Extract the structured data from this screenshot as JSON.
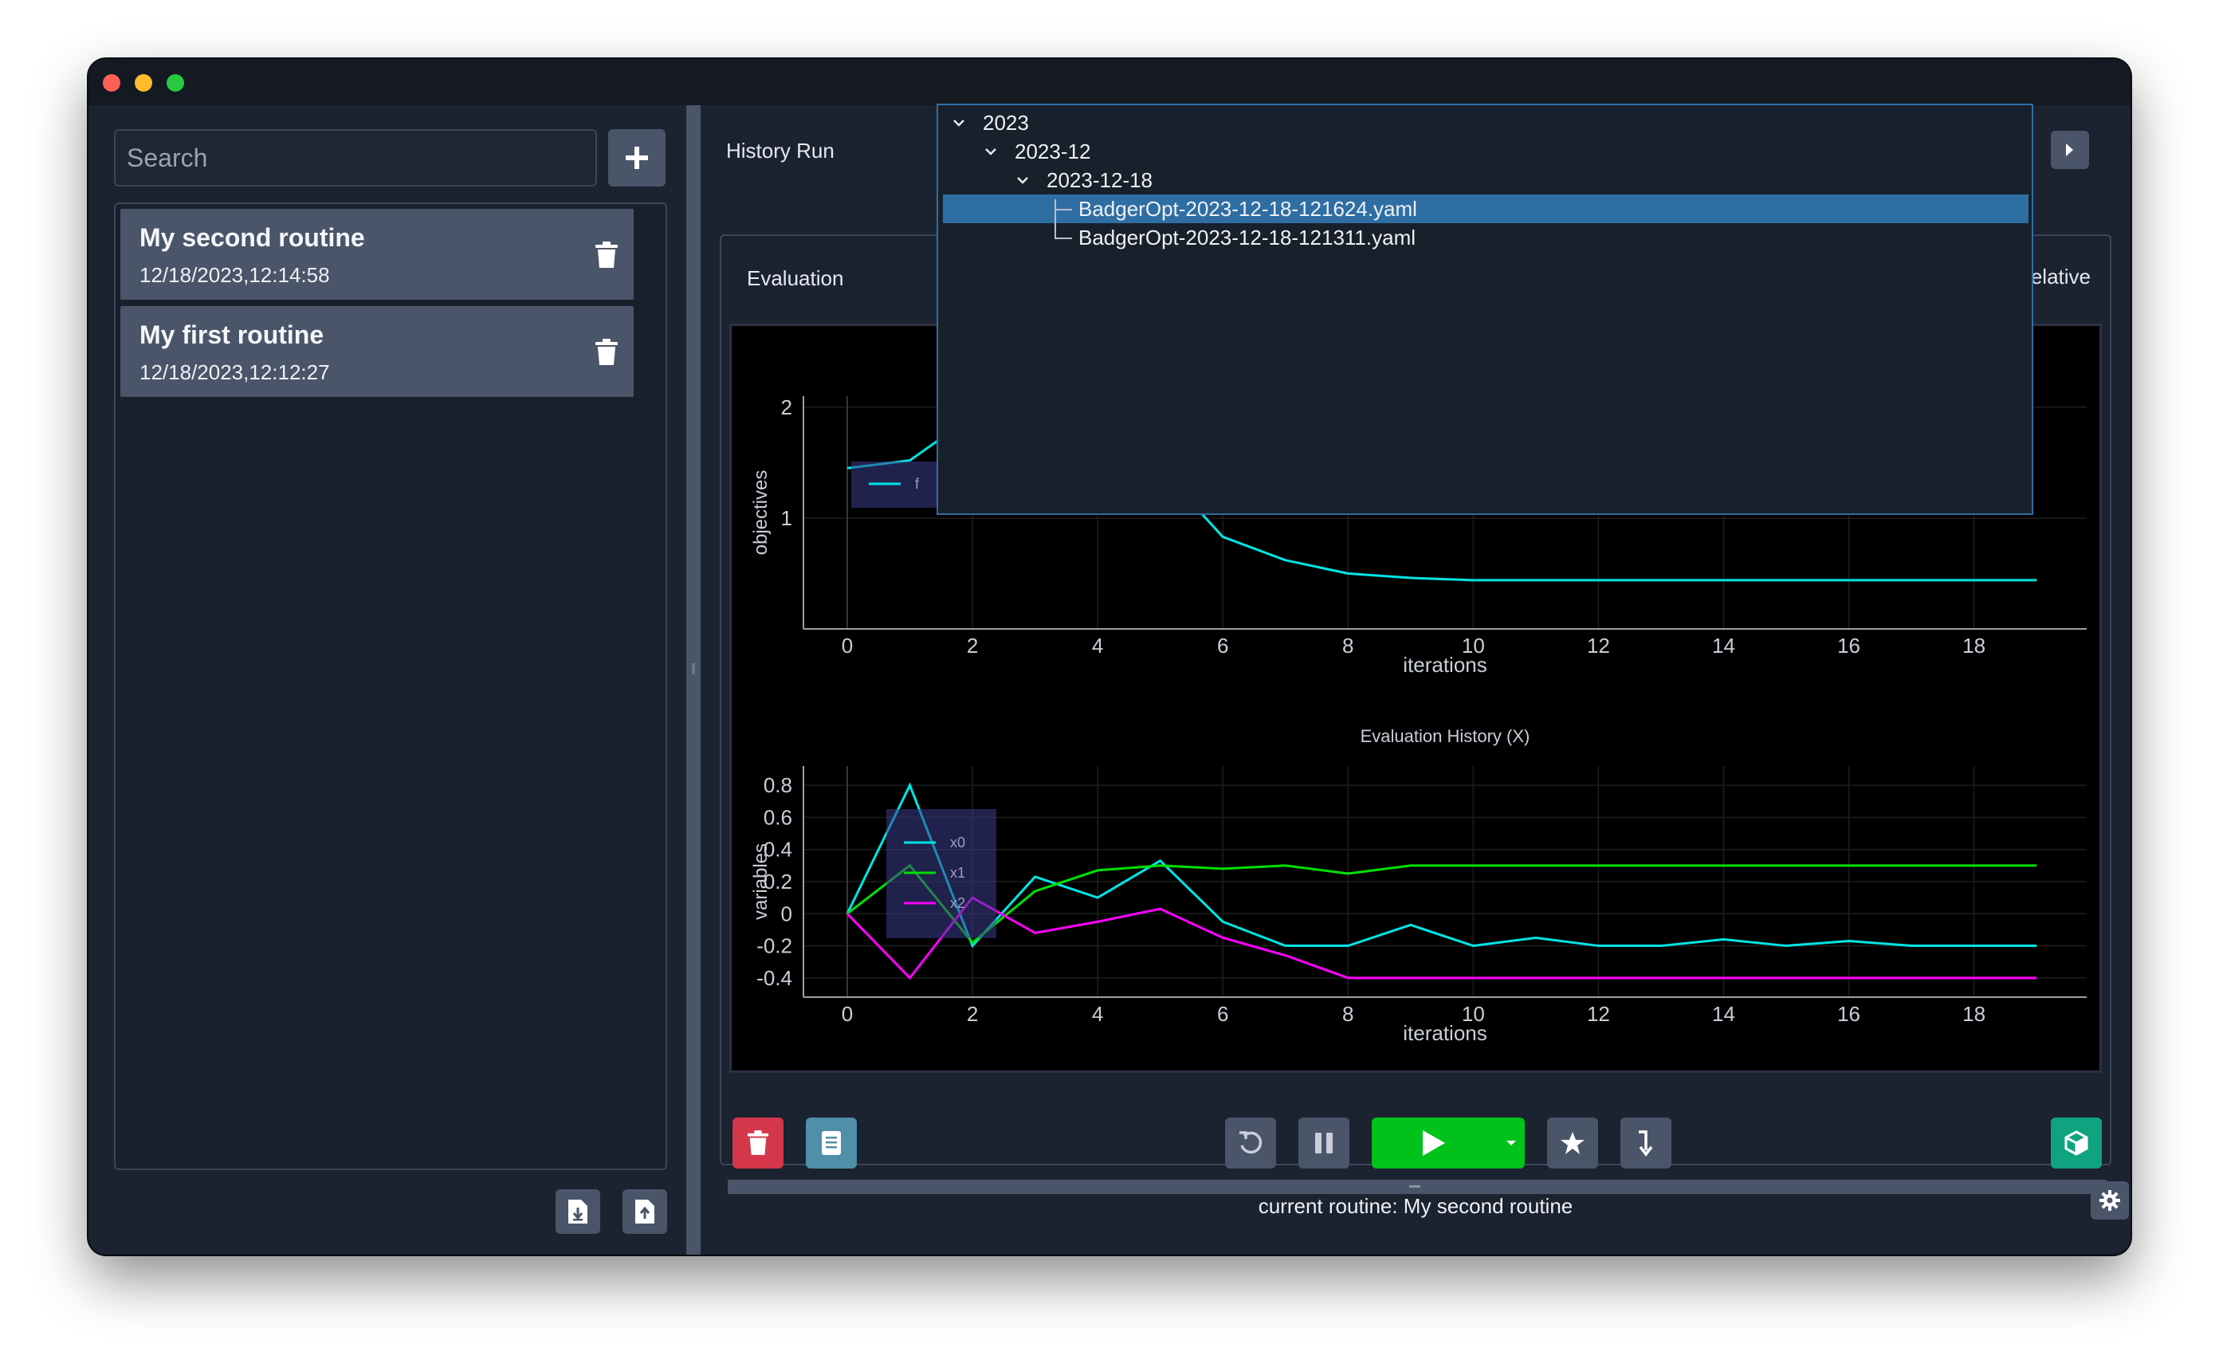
{
  "window": {
    "traffic_lights": [
      "close",
      "minimize",
      "maximize"
    ]
  },
  "sidebar": {
    "search_placeholder": "Search",
    "add_icon": "plus-icon",
    "routines": [
      {
        "name": "My second routine",
        "date": "12/18/2023,12:14:58"
      },
      {
        "name": "My first routine",
        "date": "12/18/2023,12:12:27"
      }
    ],
    "delete_icon": "trash-icon",
    "import_icon": "import-icon",
    "export_icon": "export-icon"
  },
  "header": {
    "history_label": "History Run",
    "prev_icon": "triangle-left-icon",
    "next_icon": "triangle-right-icon"
  },
  "history_tree": {
    "year": "2023",
    "month": "2023-12",
    "day": "2023-12-18",
    "files": [
      "BadgerOpt-2023-12-18-121624.yaml",
      "BadgerOpt-2023-12-18-121311.yaml"
    ],
    "selected_index": 0
  },
  "panel": {
    "evaluation_label": "Evaluation",
    "relative_label": "Relative",
    "relative_checked": true
  },
  "chart_data": [
    {
      "type": "line",
      "title": "",
      "xlabel": "iterations",
      "ylabel": "objectives",
      "x_ticks": [
        0,
        2,
        4,
        6,
        8,
        10,
        12,
        14,
        16,
        18
      ],
      "y_ticks": [
        1,
        2
      ],
      "xlim": [
        -0.7,
        19.8
      ],
      "ylim": [
        0.0,
        2.1
      ],
      "grid": true,
      "legend": "top-left",
      "series": [
        {
          "name": "f",
          "color": "#00e5e5",
          "x": [
            0,
            1,
            2,
            3,
            4,
            5,
            6,
            7,
            8,
            9,
            10,
            11,
            12,
            13,
            14,
            15,
            16,
            17,
            18,
            19
          ],
          "y": [
            1.45,
            1.52,
            1.92,
            1.35,
            1.2,
            1.45,
            0.83,
            0.62,
            0.5,
            0.46,
            0.44,
            0.44,
            0.44,
            0.44,
            0.44,
            0.44,
            0.44,
            0.44,
            0.44,
            0.44
          ]
        }
      ]
    },
    {
      "type": "line",
      "title": "Evaluation History (X)",
      "xlabel": "iterations",
      "ylabel": "variables",
      "x_ticks": [
        0,
        2,
        4,
        6,
        8,
        10,
        12,
        14,
        16,
        18
      ],
      "y_ticks": [
        0.8,
        0.6,
        0.4,
        0.2,
        0,
        -0.2,
        -0.4
      ],
      "xlim": [
        -0.7,
        19.8
      ],
      "ylim": [
        -0.52,
        0.92
      ],
      "grid": true,
      "legend": "top-left",
      "series": [
        {
          "name": "x0",
          "color": "#00e5e5",
          "x": [
            0,
            1,
            2,
            3,
            4,
            5,
            6,
            7,
            8,
            9,
            10,
            11,
            12,
            13,
            14,
            15,
            16,
            17,
            18,
            19
          ],
          "y": [
            0,
            0.8,
            -0.2,
            0.23,
            0.1,
            0.33,
            -0.05,
            -0.2,
            -0.2,
            -0.07,
            -0.2,
            -0.15,
            -0.2,
            -0.2,
            -0.16,
            -0.2,
            -0.17,
            -0.2,
            -0.2,
            -0.2
          ]
        },
        {
          "name": "x1",
          "color": "#00e000",
          "x": [
            0,
            1,
            2,
            3,
            4,
            5,
            6,
            7,
            8,
            9,
            10,
            11,
            12,
            13,
            14,
            15,
            16,
            17,
            18,
            19
          ],
          "y": [
            0,
            0.3,
            -0.18,
            0.14,
            0.27,
            0.3,
            0.28,
            0.3,
            0.25,
            0.3,
            0.3,
            0.3,
            0.3,
            0.3,
            0.3,
            0.3,
            0.3,
            0.3,
            0.3,
            0.3
          ]
        },
        {
          "name": "x2",
          "color": "#ff00ff",
          "x": [
            0,
            1,
            2,
            3,
            4,
            5,
            6,
            7,
            8,
            9,
            10,
            11,
            12,
            13,
            14,
            15,
            16,
            17,
            18,
            19
          ],
          "y": [
            0,
            -0.4,
            0.1,
            -0.12,
            -0.05,
            0.03,
            -0.15,
            -0.26,
            -0.4,
            -0.4,
            -0.4,
            -0.4,
            -0.4,
            -0.4,
            -0.4,
            -0.4,
            -0.4,
            -0.4,
            -0.4,
            -0.4
          ]
        }
      ]
    }
  ],
  "toolbar": {
    "delete_run_icon": "trash-icon",
    "logbook_icon": "logbook-icon",
    "reset_icon": "reset-icon",
    "pause_icon": "pause-icon",
    "play_icon": "play-icon",
    "run_dropdown_icon": "caret-down-icon",
    "jump_icon": "star-icon",
    "dial_in_icon": "arrow-down-icon",
    "environment_icon": "cube-icon",
    "colors": {
      "danger": "#d4364a",
      "logbook": "#4f8fa8",
      "play": "#00c21a",
      "env": "#10a37f"
    }
  },
  "status": {
    "current_routine": "current routine: My second routine",
    "settings_icon": "gear-icon"
  }
}
